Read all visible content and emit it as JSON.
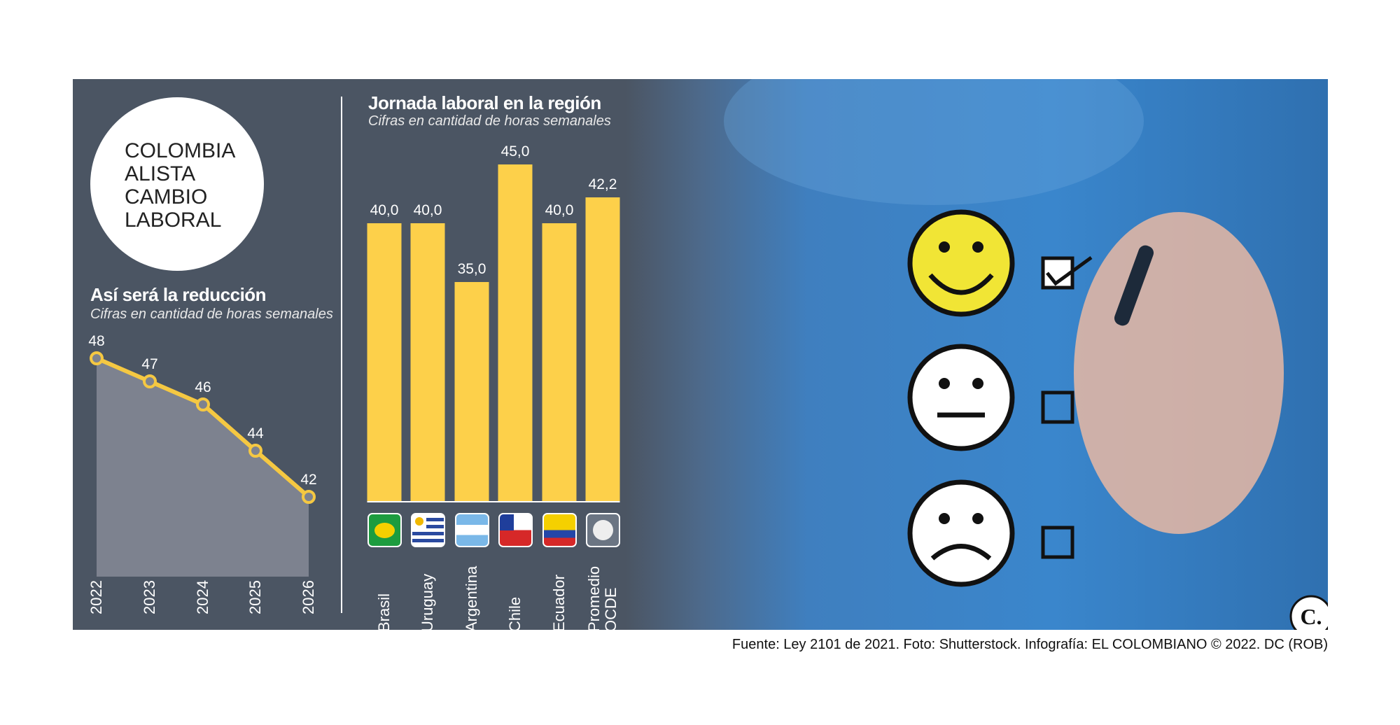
{
  "headline": [
    "COLOMBIA",
    "ALISTA",
    "CAMBIO",
    "LABORAL"
  ],
  "source": "Fuente: Ley 2101 de 2021. Foto: Shutterstock. Infografía: EL COLOMBIANO © 2022. DC (ROB)",
  "logo": "C.",
  "chart_data": [
    {
      "type": "area",
      "title": "Así será la reducción",
      "subtitle": "Cifras en cantidad de horas semanales",
      "categories": [
        "2022",
        "2023",
        "2024",
        "2025",
        "2026"
      ],
      "values": [
        48,
        47,
        46,
        44,
        42
      ],
      "color": "#f5c842",
      "fill": "#7d828f"
    },
    {
      "type": "bar",
      "title": "Jornada laboral en la región",
      "subtitle": "Cifras en cantidad de horas semanales",
      "categories": [
        "Brasil",
        "Uruguay",
        "Argentina",
        "Chile",
        "Ecuador",
        "Promedio OCDE"
      ],
      "values": [
        40,
        40,
        35,
        45,
        40,
        42.2
      ],
      "value_labels": [
        "40,0",
        "40,0",
        "35,0",
        "45,0",
        "40,0",
        "42,2"
      ],
      "color": "#fdd04a"
    }
  ]
}
